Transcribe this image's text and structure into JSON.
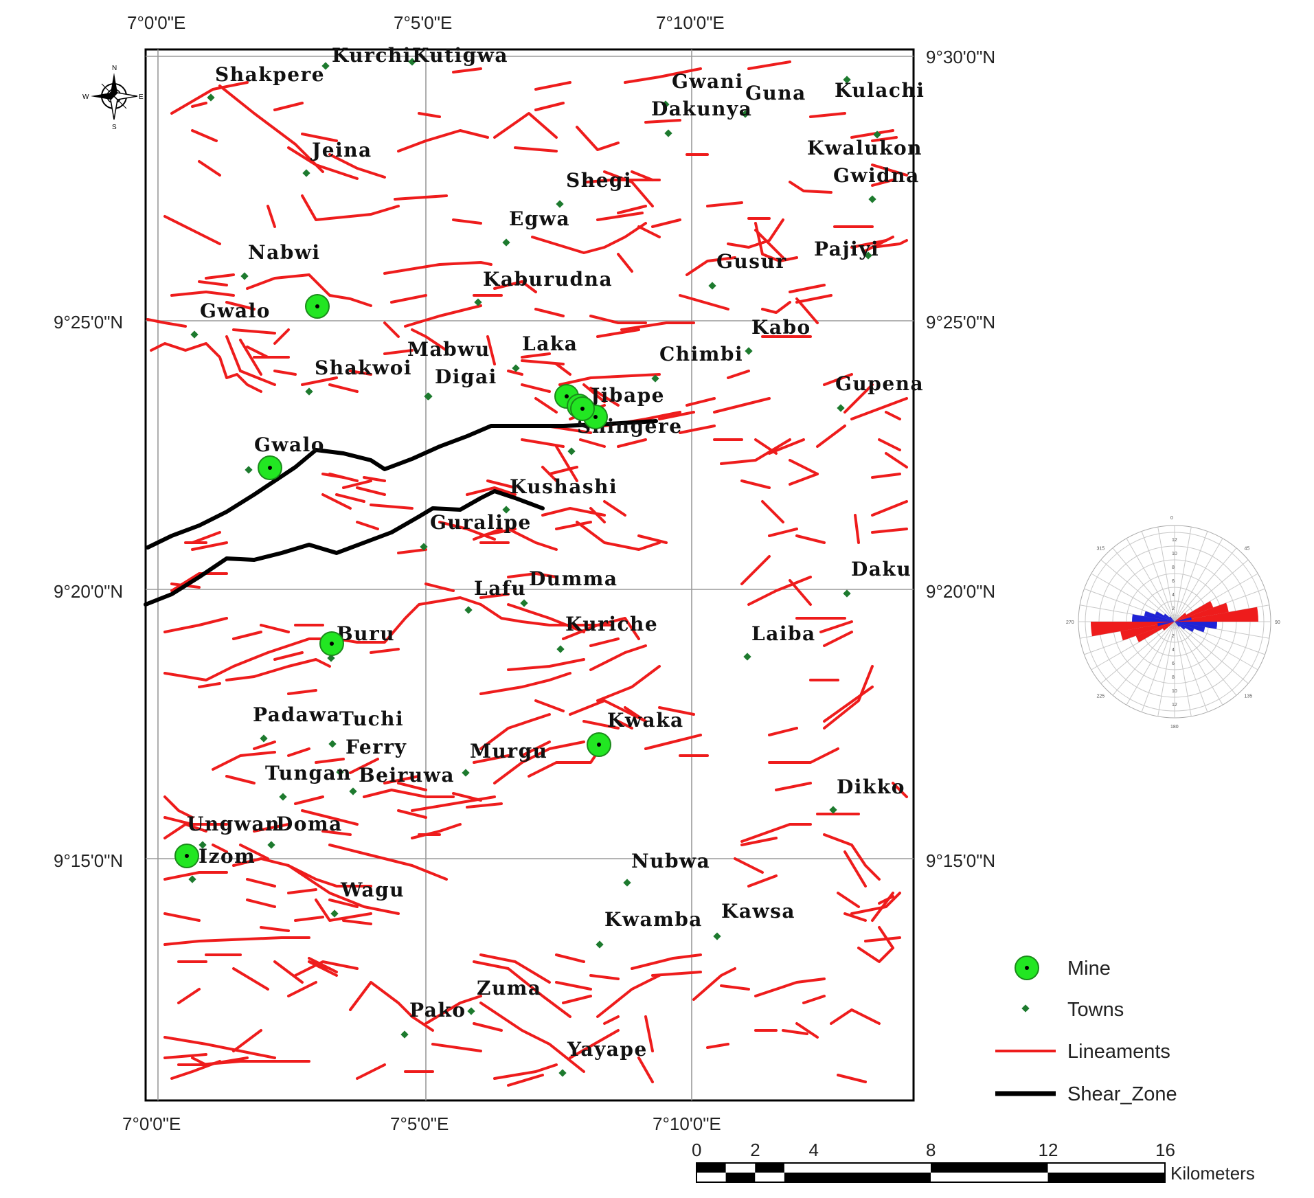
{
  "map": {
    "lat_labels": [
      "9°30'0\"N",
      "9°25'0\"N",
      "9°20'0\"N",
      "9°15'0\"N"
    ],
    "lon_labels": [
      "7°0'0\"E",
      "7°5'0\"E",
      "7°10'0\"E"
    ],
    "north_arrow": {
      "n": "N",
      "s": "S",
      "e": "E",
      "w": "W"
    }
  },
  "colors": {
    "lineament": "#ee1c1c",
    "shear_zone": "#000000",
    "mine_fill": "#22e622",
    "town_fill": "#1d7a2e",
    "grid": "#9a9a9a",
    "rose_red": "#ee1c1c",
    "rose_blue": "#1f23d6"
  },
  "towns": [
    {
      "name": "Kurchi"
    },
    {
      "name": "Kutigwa"
    },
    {
      "name": "Shakpere"
    },
    {
      "name": "Gwani"
    },
    {
      "name": "Guna"
    },
    {
      "name": "Kulachi"
    },
    {
      "name": "Dakunya"
    },
    {
      "name": "Jeina"
    },
    {
      "name": "Kwalukon"
    },
    {
      "name": "Gwidna"
    },
    {
      "name": "Shegi"
    },
    {
      "name": "Egwa"
    },
    {
      "name": "Nabwi"
    },
    {
      "name": "Pajiyi"
    },
    {
      "name": "Gusur"
    },
    {
      "name": "Kaburudna"
    },
    {
      "name": "Gwalo"
    },
    {
      "name": "Kabo"
    },
    {
      "name": "Mabwu"
    },
    {
      "name": "Laka"
    },
    {
      "name": "Chimbi"
    },
    {
      "name": "Shakwoi"
    },
    {
      "name": "Digai"
    },
    {
      "name": "Gupena"
    },
    {
      "name": "Jibape"
    },
    {
      "name": "Shingere"
    },
    {
      "name": "Gwalo"
    },
    {
      "name": "Kushashi"
    },
    {
      "name": "Guralipe"
    },
    {
      "name": "Daku"
    },
    {
      "name": "Lafu"
    },
    {
      "name": "Dumma"
    },
    {
      "name": "Kuriche"
    },
    {
      "name": "Buru"
    },
    {
      "name": "Laiba"
    },
    {
      "name": "Padawa"
    },
    {
      "name": "Tuchi"
    },
    {
      "name": "Kwaka"
    },
    {
      "name": "Ferry"
    },
    {
      "name": "Murgu"
    },
    {
      "name": "Tungan"
    },
    {
      "name": "Beiruwa"
    },
    {
      "name": "Dikko"
    },
    {
      "name": "Ungwan"
    },
    {
      "name": "Doma"
    },
    {
      "name": "Izom"
    },
    {
      "name": "Nubwa"
    },
    {
      "name": "Wagu"
    },
    {
      "name": "Kawsa"
    },
    {
      "name": "Kwamba"
    },
    {
      "name": "Zuma"
    },
    {
      "name": "Pako"
    },
    {
      "name": "Yayape"
    }
  ],
  "mines_count": 9,
  "legend": {
    "mine": "Mine",
    "towns": "Towns",
    "lineaments": "Lineaments",
    "shear_zone": "Shear_Zone"
  },
  "scale_bar": {
    "ticks": [
      "0",
      "2",
      "4",
      "8",
      "12",
      "16"
    ],
    "unit": "Kilometers"
  },
  "rose": {
    "angles": [
      "0",
      "45",
      "90",
      "135",
      "180",
      "225",
      "270",
      "315"
    ],
    "radial_ticks": [
      "2",
      "4",
      "6",
      "8",
      "10",
      "12"
    ]
  }
}
